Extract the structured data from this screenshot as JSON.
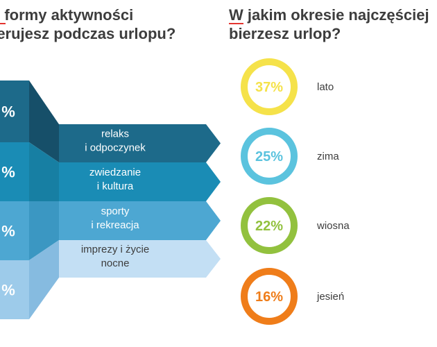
{
  "left_heading": {
    "line1": "e formy aktywności",
    "line2": "ferujesz podczas urlopu?"
  },
  "right_heading": {
    "line1": "W jakim okresie najczęściej",
    "line2": "bierzesz urlop?"
  },
  "chart_data": [
    {
      "type": "funnel",
      "left_values": [
        "%",
        "%",
        "%",
        "%"
      ],
      "categories": [
        [
          "relaks",
          "i odpoczynek"
        ],
        [
          "zwiedzanie",
          "i kultura"
        ],
        [
          "sporty",
          "i rekreacja"
        ],
        [
          "imprezy i życie",
          "nocne"
        ]
      ],
      "colors": {
        "left": [
          "#1d6a8a",
          "#1a8cb5",
          "#4da7d2",
          "#9dcbea"
        ],
        "fold": [
          "#164f69",
          "#177fa3",
          "#3b97c2",
          "#86bbe0"
        ],
        "arrow": [
          "#1d6a8a",
          "#1a8cb5",
          "#4da7d2",
          "#c3dff4"
        ],
        "label": [
          "#ffffff",
          "#ffffff",
          "#ffffff",
          "#3d3d3d"
        ]
      }
    },
    {
      "type": "donut",
      "categories": [
        "lato",
        "zima",
        "wiosna",
        "jesień"
      ],
      "values": [
        37,
        25,
        22,
        16
      ],
      "labels": [
        "37%",
        "25%",
        "22%",
        "16%"
      ],
      "colors": [
        "#f5e24a",
        "#5bc3de",
        "#92c13e",
        "#ef7d1a"
      ]
    }
  ]
}
